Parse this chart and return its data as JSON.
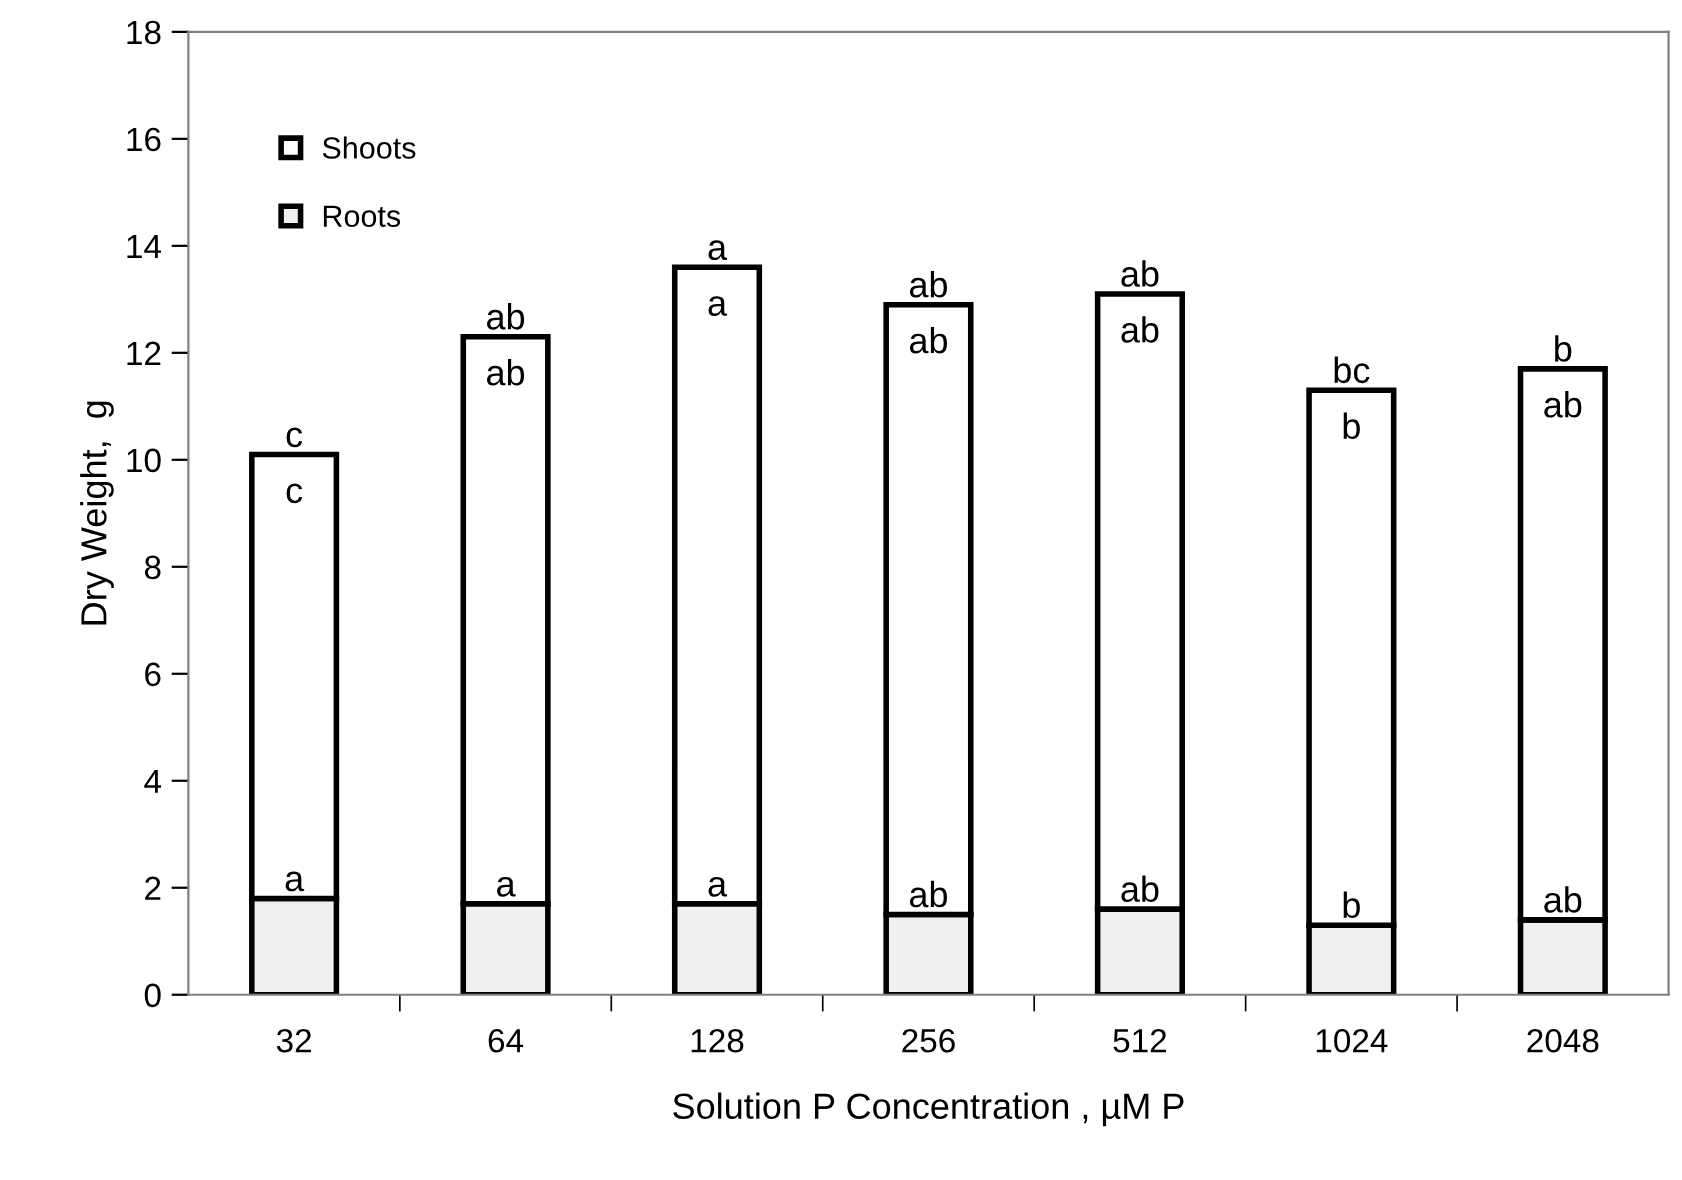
{
  "chart_data": {
    "type": "bar",
    "stacked": true,
    "xlabel": "Solution P Concentration , µM P",
    "ylabel": "Dry Weight,  g",
    "categories": [
      "32",
      "64",
      "128",
      "256",
      "512",
      "1024",
      "2048"
    ],
    "series": [
      {
        "name": "Roots",
        "color": "#f0f0f0",
        "values": [
          1.8,
          1.7,
          1.7,
          1.5,
          1.6,
          1.3,
          1.4
        ]
      },
      {
        "name": "Shoots",
        "color": "#ffffff",
        "values": [
          8.3,
          10.6,
          11.9,
          11.4,
          11.5,
          10.0,
          10.3
        ]
      }
    ],
    "ylim": [
      0,
      18
    ],
    "yticks": [
      0,
      2,
      4,
      6,
      8,
      10,
      12,
      14,
      16,
      18
    ],
    "grid": false,
    "legend": "top left",
    "annotations": [
      {
        "text": "c",
        "x": "32",
        "y": 10.1
      },
      {
        "text": "c",
        "x": "32",
        "y": 10.1
      },
      {
        "text": "a",
        "x": "32",
        "y": 1.8
      },
      {
        "text": "ab",
        "x": "64",
        "y": 12.3
      },
      {
        "text": "ab",
        "x": "64",
        "y": 12.3
      },
      {
        "text": "a",
        "x": "64",
        "y": 1.7
      },
      {
        "text": "a",
        "x": "128",
        "y": 13.6
      },
      {
        "text": "a",
        "x": "128",
        "y": 13.6
      },
      {
        "text": "a",
        "x": "128",
        "y": 1.7
      },
      {
        "text": "ab",
        "x": "256",
        "y": 12.9
      },
      {
        "text": "ab",
        "x": "256",
        "y": 12.9
      },
      {
        "text": "ab",
        "x": "256",
        "y": 1.5
      },
      {
        "text": "ab",
        "x": "512",
        "y": 13.1
      },
      {
        "text": "ab",
        "x": "512",
        "y": 13.1
      },
      {
        "text": "ab",
        "x": "512",
        "y": 1.6
      },
      {
        "text": "bc",
        "x": "1024",
        "y": 11.3
      },
      {
        "text": "b",
        "x": "1024",
        "y": 11.3
      },
      {
        "text": "b",
        "x": "1024",
        "y": 1.3
      },
      {
        "text": "b",
        "x": "2048",
        "y": 11.7
      },
      {
        "text": "ab",
        "x": "2048",
        "y": 11.7
      },
      {
        "text": "ab",
        "x": "2048",
        "y": 1.4
      }
    ]
  }
}
